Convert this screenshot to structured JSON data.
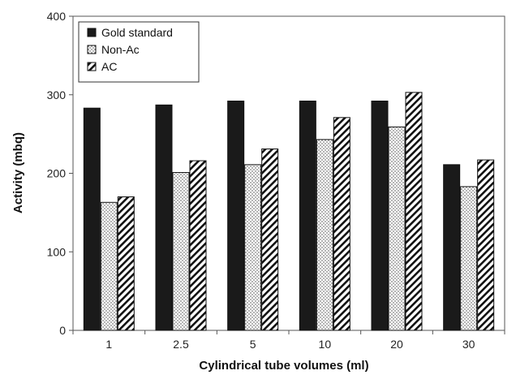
{
  "chart_data": {
    "type": "bar",
    "title": "",
    "xlabel": "Cylindrical tube volumes (ml)",
    "ylabel": "Activity (mbq)",
    "categories": [
      "1",
      "2.5",
      "5",
      "10",
      "20",
      "30"
    ],
    "ylim": [
      0,
      400
    ],
    "yticks": [
      "0",
      "100",
      "200",
      "300",
      "400"
    ],
    "grid": false,
    "legend_position": "top-left",
    "series": [
      {
        "name": "Gold standard",
        "pattern": "solid",
        "color": "#1a1a1a",
        "values": [
          283,
          287,
          292,
          292,
          292,
          211
        ]
      },
      {
        "name": "Non-Ac",
        "pattern": "dots",
        "color": "#ffffff",
        "values": [
          163,
          201,
          211,
          243,
          259,
          183
        ]
      },
      {
        "name": "AC",
        "pattern": "diagonal-hatch",
        "color": "#ffffff",
        "values": [
          170,
          216,
          231,
          271,
          303,
          217
        ]
      }
    ]
  }
}
